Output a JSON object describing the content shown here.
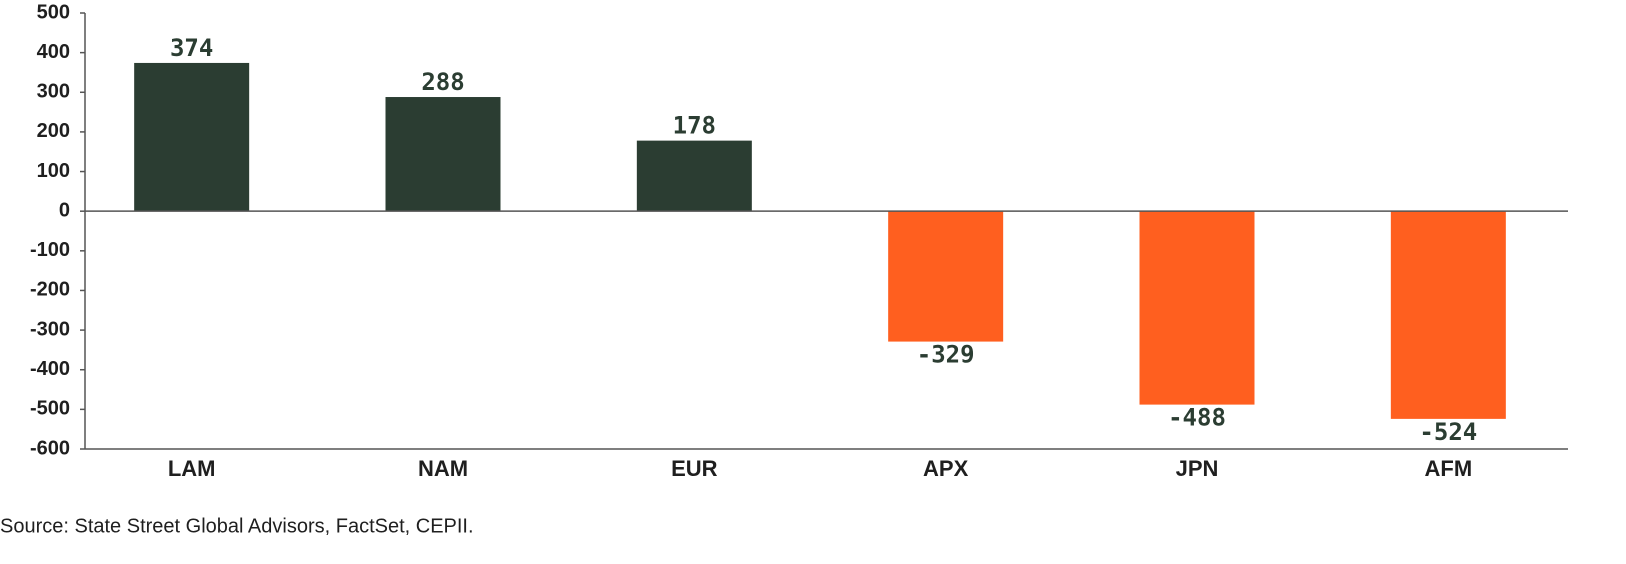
{
  "chart_data": {
    "type": "bar",
    "categories": [
      "LAM",
      "NAM",
      "EUR",
      "APX",
      "JPN",
      "AFM"
    ],
    "values": [
      374,
      288,
      178,
      -329,
      -488,
      -524
    ],
    "colors": [
      "#2b3d32",
      "#2b3d32",
      "#2b3d32",
      "#ff5f1f",
      "#ff5f1f",
      "#ff5f1f"
    ],
    "ylim": [
      -600,
      500
    ],
    "yticks": [
      -600,
      -500,
      -400,
      -300,
      -200,
      -100,
      0,
      100,
      200,
      300,
      400,
      500
    ],
    "grid": false,
    "source": "Source: State Street Global Advisors, FactSet, CEPII."
  }
}
